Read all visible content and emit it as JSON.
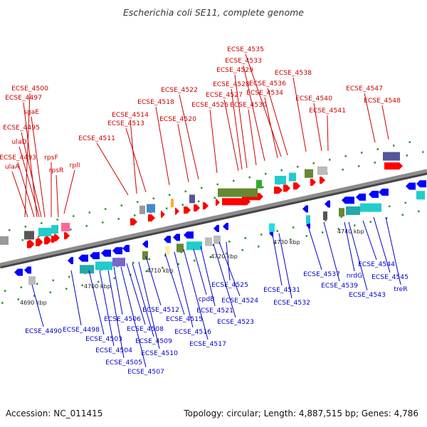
{
  "title": "Escherichia coli SE11, complete genome",
  "footer": {
    "accession": "Accession: NC_011415",
    "topology": "Topology: circular; Length: 4,887,515 bp; Genes: 4,786"
  },
  "colors": {
    "upper_label": "#cc0000",
    "lower_label": "#0000cc",
    "backbone": "#8c8c8c",
    "forward_gene": "#ff0000",
    "reverse_gene": "#0000ff",
    "tick": "#229922"
  },
  "scale": {
    "unit": "kbp",
    "ticks": [
      {
        "label": "4690 kbp",
        "kbp": 4690
      },
      {
        "label": "4700 kbp",
        "kbp": 4700
      },
      {
        "label": "4710 kbp",
        "kbp": 4710
      },
      {
        "label": "4720 kbp",
        "kbp": 4720
      },
      {
        "label": "4730 kbp",
        "kbp": 4730
      },
      {
        "label": "4740 kbp",
        "kbp": 4740
      }
    ]
  },
  "upper_labels": [
    "ECSE_4500",
    "ECSE_4497",
    "sgaE",
    "ECSE_4495",
    "ulaD",
    "ECSE_4493",
    "rpsF",
    "ulaA",
    "rpsR",
    "rplI",
    "ECSE_4511",
    "ECSE_4514",
    "ECSE_4513",
    "ECSE_4518",
    "ECSE_4520",
    "ECSE_4522",
    "ECSE_4526",
    "ECSE_4527",
    "ECSE_4528",
    "ECSE_4529",
    "ECSE_4530",
    "ECSE_4533",
    "ECSE_4534",
    "ECSE_4535",
    "ECSE_4536",
    "ECSE_4538",
    "ECSE_4540",
    "ECSE_4541",
    "ECSE_4547",
    "ECSE_4548"
  ],
  "lower_labels": [
    "ECSE_4490",
    "ECSE_4498",
    "ECSE_4503",
    "ECSE_4504",
    "ECSE_4505",
    "ECSE_4506",
    "ECSE_4507",
    "ECSE_4508",
    "ECSE_4509",
    "ECSE_4510",
    "ECSE_4512",
    "ECSE_4515",
    "ECSE_4516",
    "ECSE_4517",
    "cpdB",
    "ECSE_4521",
    "ECSE_4523",
    "ECSE_4524",
    "ECSE_4525",
    "ECSE_4531",
    "ECSE_4532",
    "ECSE_4537",
    "ECSE_4539",
    "nrdG",
    "ECSE_4543",
    "ECSE_4544",
    "ECSE_4545",
    "treR"
  ]
}
